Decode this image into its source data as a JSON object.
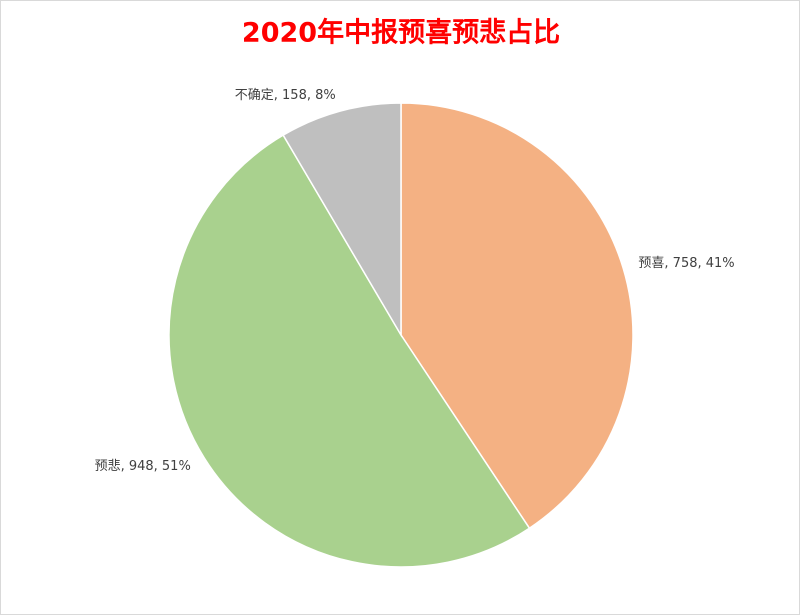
{
  "chart_data": {
    "type": "pie",
    "title": "2020年中报预喜预悲占比",
    "categories": [
      "预喜",
      "预悲",
      "不确定"
    ],
    "values": [
      758,
      948,
      158
    ],
    "value_labels": [
      "预喜, 758, 41%",
      "预悲, 948, 51%",
      "不确定, 158, 8%"
    ],
    "colors": [
      "#F4B183",
      "#A9D18E",
      "#BFBFBF"
    ]
  }
}
